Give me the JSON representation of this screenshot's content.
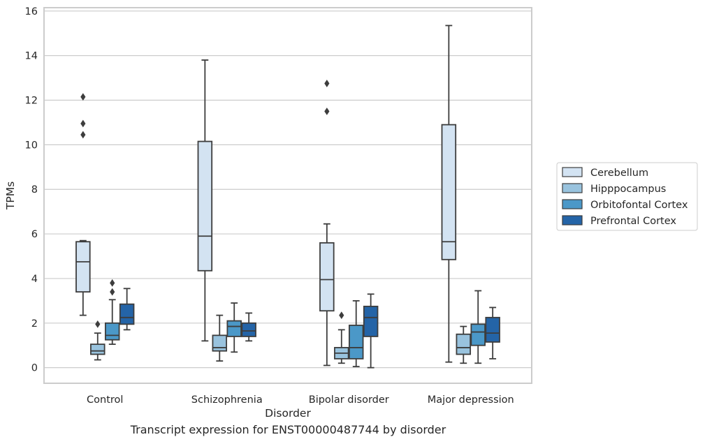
{
  "caption": "Transcript expression for ENST00000487744 by disorder",
  "chart_data": {
    "type": "box",
    "xlabel": "Disorder",
    "ylabel": "TPMs",
    "ylim": [
      -0.7,
      16.15
    ],
    "yticks": [
      0,
      2,
      4,
      6,
      8,
      10,
      12,
      14,
      16
    ],
    "grid": "horizontal",
    "legend_position": "right",
    "categories": [
      "Control",
      "Schizophrenia",
      "Bipolar disorder",
      "Major depression"
    ],
    "series": [
      {
        "name": "Cerebellum",
        "color": "#d3e3f2",
        "boxes": [
          {
            "whisker_low": 2.35,
            "q1": 3.4,
            "median": 4.75,
            "q3": 5.65,
            "whisker_high": 5.7,
            "outliers": [
              10.45,
              10.95,
              12.15
            ]
          },
          {
            "whisker_low": 1.2,
            "q1": 4.35,
            "median": 5.9,
            "q3": 10.15,
            "whisker_high": 13.8,
            "outliers": []
          },
          {
            "whisker_low": 0.1,
            "q1": 2.55,
            "median": 3.95,
            "q3": 5.6,
            "whisker_high": 6.45,
            "outliers": [
              11.5,
              12.75
            ]
          },
          {
            "whisker_low": 0.25,
            "q1": 4.85,
            "median": 5.65,
            "q3": 10.9,
            "whisker_high": 15.35,
            "outliers": []
          }
        ]
      },
      {
        "name": "Hipppocampus",
        "color": "#99c3de",
        "boxes": [
          {
            "whisker_low": 0.35,
            "q1": 0.6,
            "median": 0.75,
            "q3": 1.05,
            "whisker_high": 1.55,
            "outliers": [
              1.95
            ]
          },
          {
            "whisker_low": 0.3,
            "q1": 0.75,
            "median": 0.9,
            "q3": 1.45,
            "whisker_high": 2.35,
            "outliers": []
          },
          {
            "whisker_low": 0.2,
            "q1": 0.4,
            "median": 0.65,
            "q3": 0.9,
            "whisker_high": 1.7,
            "outliers": [
              2.35
            ]
          },
          {
            "whisker_low": 0.2,
            "q1": 0.6,
            "median": 0.9,
            "q3": 1.5,
            "whisker_high": 1.85,
            "outliers": []
          }
        ]
      },
      {
        "name": "Orbitofontal Cortex",
        "color": "#4b98c8",
        "boxes": [
          {
            "whisker_low": 1.05,
            "q1": 1.25,
            "median": 1.45,
            "q3": 2.0,
            "whisker_high": 3.05,
            "outliers": [
              3.4,
              3.8
            ]
          },
          {
            "whisker_low": 0.7,
            "q1": 1.4,
            "median": 1.85,
            "q3": 2.1,
            "whisker_high": 2.9,
            "outliers": []
          },
          {
            "whisker_low": 0.05,
            "q1": 0.4,
            "median": 0.9,
            "q3": 1.9,
            "whisker_high": 3.0,
            "outliers": []
          },
          {
            "whisker_low": 0.2,
            "q1": 1.0,
            "median": 1.6,
            "q3": 1.95,
            "whisker_high": 3.45,
            "outliers": []
          }
        ]
      },
      {
        "name": "Prefrontal Cortex",
        "color": "#2464a7",
        "boxes": [
          {
            "whisker_low": 1.7,
            "q1": 1.95,
            "median": 2.25,
            "q3": 2.85,
            "whisker_high": 3.55,
            "outliers": []
          },
          {
            "whisker_low": 1.2,
            "q1": 1.4,
            "median": 1.65,
            "q3": 2.0,
            "whisker_high": 2.45,
            "outliers": []
          },
          {
            "whisker_low": 0.0,
            "q1": 1.4,
            "median": 2.25,
            "q3": 2.75,
            "whisker_high": 3.3,
            "outliers": []
          },
          {
            "whisker_low": 0.4,
            "q1": 1.15,
            "median": 1.55,
            "q3": 2.25,
            "whisker_high": 2.7,
            "outliers": []
          }
        ]
      }
    ]
  }
}
